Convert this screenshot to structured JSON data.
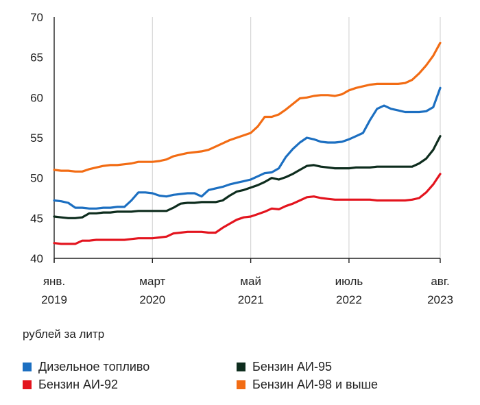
{
  "chart_data": {
    "type": "line",
    "unit_label": "рублей за литр",
    "ylim": [
      40,
      70
    ],
    "y_ticks": [
      40,
      45,
      50,
      55,
      60,
      65,
      70
    ],
    "x_range": [
      "2019-01",
      "2023-08"
    ],
    "x_ticks": [
      {
        "date": "2019-01",
        "month": "янв.",
        "year": "2019"
      },
      {
        "date": "2020-03",
        "month": "март",
        "year": "2020"
      },
      {
        "date": "2021-05",
        "month": "май",
        "year": "2021"
      },
      {
        "date": "2022-07",
        "month": "июль",
        "year": "2022"
      },
      {
        "date": "2023-08",
        "month": "авг.",
        "year": "2023"
      }
    ],
    "grid": "vertical",
    "legend_position": "bottom",
    "x": [
      "2019-01",
      "2019-02",
      "2019-03",
      "2019-04",
      "2019-05",
      "2019-06",
      "2019-07",
      "2019-08",
      "2019-09",
      "2019-10",
      "2019-11",
      "2019-12",
      "2020-01",
      "2020-02",
      "2020-03",
      "2020-04",
      "2020-05",
      "2020-06",
      "2020-07",
      "2020-08",
      "2020-09",
      "2020-10",
      "2020-11",
      "2020-12",
      "2021-01",
      "2021-02",
      "2021-03",
      "2021-04",
      "2021-05",
      "2021-06",
      "2021-07",
      "2021-08",
      "2021-09",
      "2021-10",
      "2021-11",
      "2021-12",
      "2022-01",
      "2022-02",
      "2022-03",
      "2022-04",
      "2022-05",
      "2022-06",
      "2022-07",
      "2022-08",
      "2022-09",
      "2022-10",
      "2022-11",
      "2022-12",
      "2023-01",
      "2023-02",
      "2023-03",
      "2023-04",
      "2023-05",
      "2023-06",
      "2023-07",
      "2023-08"
    ],
    "series": [
      {
        "name": "Дизельное топливо",
        "color": "#1c6fc1",
        "values": [
          47.2,
          47.1,
          46.9,
          46.3,
          46.3,
          46.2,
          46.2,
          46.3,
          46.3,
          46.4,
          46.4,
          47.2,
          48.2,
          48.2,
          48.1,
          47.8,
          47.7,
          47.9,
          48.0,
          48.1,
          48.1,
          47.7,
          48.5,
          48.7,
          48.9,
          49.2,
          49.4,
          49.6,
          49.8,
          50.2,
          50.6,
          50.7,
          51.2,
          52.6,
          53.6,
          54.4,
          55.0,
          54.8,
          54.5,
          54.4,
          54.4,
          54.5,
          54.8,
          55.2,
          55.6,
          57.2,
          58.6,
          59.0,
          58.6,
          58.4,
          58.2,
          58.2,
          58.2,
          58.3,
          58.8,
          61.2
        ]
      },
      {
        "name": "Бензин АИ-95",
        "color": "#0e2d1e",
        "values": [
          45.2,
          45.1,
          45.0,
          45.0,
          45.1,
          45.6,
          45.6,
          45.7,
          45.7,
          45.8,
          45.8,
          45.8,
          45.9,
          45.9,
          45.9,
          45.9,
          45.9,
          46.3,
          46.8,
          46.9,
          46.9,
          47.0,
          47.0,
          47.0,
          47.2,
          47.8,
          48.3,
          48.5,
          48.8,
          49.1,
          49.5,
          50.0,
          49.8,
          50.1,
          50.5,
          51.0,
          51.5,
          51.6,
          51.4,
          51.3,
          51.2,
          51.2,
          51.2,
          51.3,
          51.3,
          51.3,
          51.4,
          51.4,
          51.4,
          51.4,
          51.4,
          51.4,
          51.8,
          52.4,
          53.5,
          55.2
        ]
      },
      {
        "name": "Бензин АИ-92",
        "color": "#e3141e",
        "values": [
          41.9,
          41.8,
          41.8,
          41.8,
          42.2,
          42.2,
          42.3,
          42.3,
          42.3,
          42.3,
          42.3,
          42.4,
          42.5,
          42.5,
          42.5,
          42.6,
          42.7,
          43.1,
          43.2,
          43.3,
          43.3,
          43.3,
          43.2,
          43.2,
          43.8,
          44.3,
          44.8,
          45.1,
          45.2,
          45.5,
          45.8,
          46.2,
          46.1,
          46.5,
          46.8,
          47.2,
          47.6,
          47.7,
          47.5,
          47.4,
          47.3,
          47.3,
          47.3,
          47.3,
          47.3,
          47.3,
          47.2,
          47.2,
          47.2,
          47.2,
          47.2,
          47.3,
          47.5,
          48.2,
          49.2,
          50.5
        ]
      },
      {
        "name": "Бензин АИ-98 и выше",
        "color": "#f26c14",
        "values": [
          51.0,
          50.9,
          50.9,
          50.8,
          50.8,
          51.1,
          51.3,
          51.5,
          51.6,
          51.6,
          51.7,
          51.8,
          52.0,
          52.0,
          52.0,
          52.1,
          52.3,
          52.7,
          52.9,
          53.1,
          53.2,
          53.3,
          53.5,
          53.9,
          54.3,
          54.7,
          55.0,
          55.3,
          55.6,
          56.4,
          57.6,
          57.6,
          57.9,
          58.5,
          59.2,
          59.9,
          60.0,
          60.2,
          60.3,
          60.3,
          60.2,
          60.4,
          60.9,
          61.2,
          61.4,
          61.6,
          61.7,
          61.7,
          61.7,
          61.7,
          61.8,
          62.2,
          63.0,
          64.0,
          65.2,
          66.8
        ]
      }
    ]
  },
  "legend_layout": [
    {
      "series_index": 0,
      "col": 0,
      "row": 0
    },
    {
      "series_index": 1,
      "col": 1,
      "row": 0
    },
    {
      "series_index": 2,
      "col": 0,
      "row": 1
    },
    {
      "series_index": 3,
      "col": 1,
      "row": 1
    }
  ]
}
